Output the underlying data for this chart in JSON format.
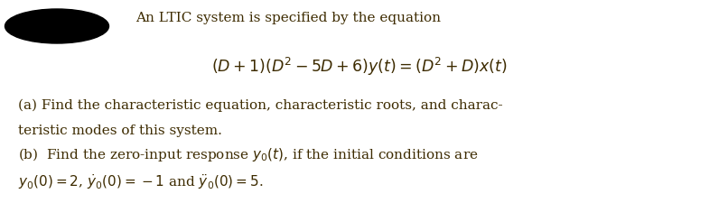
{
  "fig_width": 7.96,
  "fig_height": 2.26,
  "dpi": 100,
  "bg_color": "#ffffff",
  "text_color": "#3d2b00",
  "blob_color": "#000000",
  "title_line": "An LTIC system is specified by the equation",
  "equation": "$(D+1)(D^2-5D+6)y(t) = (D^2+D)x(t)$",
  "part_a1": "(a) Find the characteristic equation, characteristic roots, and charac-",
  "part_a2": "teristic modes of this system.",
  "part_b1": "(b)  Find the zero-input response $y_0(t)$, if the initial conditions are",
  "part_b2": "$y_0(0)=2$, $\\dot{y}_0(0)=-1$ and $\\ddot{y}_0(0)=5$.",
  "font_size_text": 11.0,
  "font_size_eq": 12.5
}
